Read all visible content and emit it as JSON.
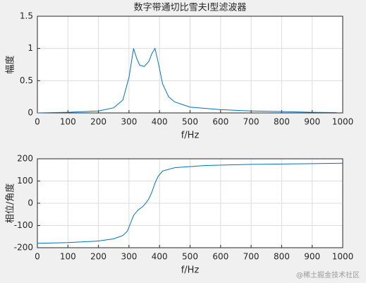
{
  "chart_data": [
    {
      "type": "line",
      "title": "数字带通切比雪夫I型滤波器",
      "x_label": "f/Hz",
      "y_label": "幅度",
      "grid": true,
      "x": [
        0,
        100,
        200,
        250,
        280,
        300,
        315,
        325,
        335,
        350,
        365,
        375,
        385,
        395,
        410,
        430,
        450,
        500,
        600,
        700,
        800,
        900,
        980
      ],
      "series": [
        {
          "color": "#0072bd",
          "values": [
            0,
            0.01,
            0.03,
            0.08,
            0.2,
            0.55,
            1.0,
            0.85,
            0.74,
            0.72,
            0.8,
            0.92,
            1.0,
            0.8,
            0.45,
            0.25,
            0.17,
            0.09,
            0.05,
            0.03,
            0.02,
            0.01,
            0.005
          ]
        }
      ],
      "xlim": [
        0,
        1000
      ],
      "ylim": [
        0,
        1.5
      ],
      "xticks": [
        0,
        100,
        200,
        300,
        400,
        500,
        600,
        700,
        800,
        900,
        1000
      ],
      "yticks": [
        0,
        0.5,
        1,
        1.5
      ]
    },
    {
      "type": "line",
      "x_label": "f/Hz",
      "y_label": "相位/角度",
      "grid": true,
      "x": [
        0,
        100,
        200,
        250,
        280,
        295,
        305,
        315,
        330,
        345,
        355,
        365,
        375,
        385,
        395,
        410,
        450,
        550,
        700,
        900,
        1000
      ],
      "series": [
        {
          "color": "#0072bd",
          "values": [
            -180,
            -177,
            -170,
            -160,
            -145,
            -125,
            -90,
            -55,
            -30,
            -15,
            0,
            20,
            50,
            90,
            120,
            145,
            160,
            170,
            175,
            178,
            180
          ]
        }
      ],
      "xlim": [
        0,
        1000
      ],
      "ylim": [
        -200,
        200
      ],
      "xticks": [
        0,
        100,
        200,
        300,
        400,
        500,
        600,
        700,
        800,
        900,
        1000
      ],
      "yticks": [
        -200,
        -100,
        0,
        100,
        200
      ]
    }
  ],
  "watermark": "@稀土掘金技术社区"
}
